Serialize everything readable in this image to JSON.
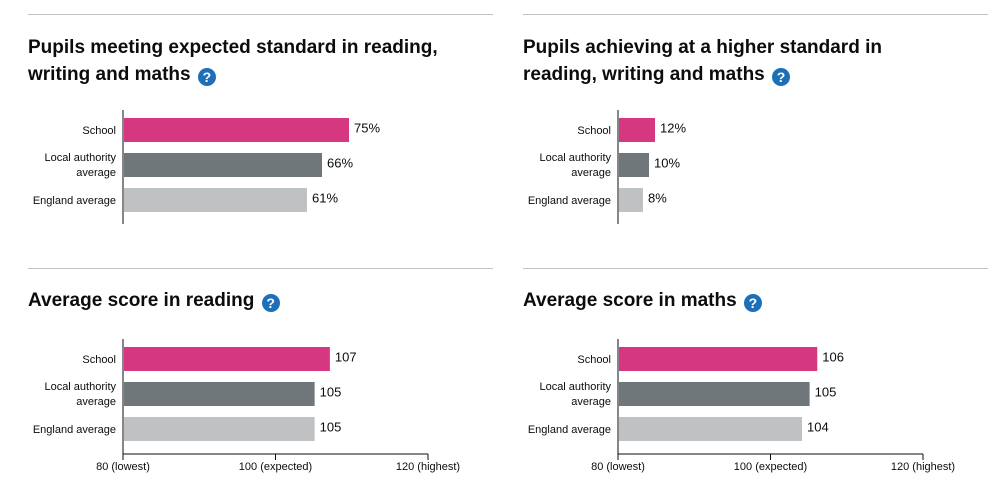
{
  "colors": {
    "school": "#d53880",
    "local": "#6f777b",
    "england": "#bfc1c3",
    "help": "#1d70b8",
    "rule": "#bfc1c3"
  },
  "help_glyph": "?",
  "panels": [
    {
      "title": "Pupils meeting expected standard in reading, writing and maths"
    },
    {
      "title": "Pupils achieving at a higher standard in reading, writing and maths"
    },
    {
      "title": "Average score in reading"
    },
    {
      "title": "Average score in maths"
    }
  ],
  "chart_data": [
    {
      "type": "bar",
      "orientation": "horizontal",
      "title": "Pupils meeting expected standard in reading, writing and maths",
      "categories": [
        [
          "School"
        ],
        [
          "Local authority",
          "average"
        ],
        [
          "England average"
        ]
      ],
      "values": [
        75,
        66,
        61
      ],
      "labels": [
        "75%",
        "66%",
        "61%"
      ],
      "xlim": [
        0,
        100
      ],
      "show_axis": false
    },
    {
      "type": "bar",
      "orientation": "horizontal",
      "title": "Pupils achieving at a higher standard in reading, writing and maths",
      "categories": [
        [
          "School"
        ],
        [
          "Local authority",
          "average"
        ],
        [
          "England average"
        ]
      ],
      "values": [
        12,
        10,
        8
      ],
      "labels": [
        "12%",
        "10%",
        "8%"
      ],
      "xlim": [
        0,
        100
      ],
      "show_axis": false
    },
    {
      "type": "bar",
      "orientation": "horizontal",
      "title": "Average score in reading",
      "categories": [
        [
          "School"
        ],
        [
          "Local authority",
          "average"
        ],
        [
          "England average"
        ]
      ],
      "values": [
        107,
        105,
        105
      ],
      "labels": [
        "107",
        "105",
        "105"
      ],
      "xlim": [
        80,
        120
      ],
      "show_axis": true,
      "ticks": [
        {
          "value": 80,
          "label": "80 (lowest)"
        },
        {
          "value": 100,
          "label": "100 (expected)"
        },
        {
          "value": 120,
          "label": "120 (highest)"
        }
      ]
    },
    {
      "type": "bar",
      "orientation": "horizontal",
      "title": "Average score in maths",
      "categories": [
        [
          "School"
        ],
        [
          "Local authority",
          "average"
        ],
        [
          "England average"
        ]
      ],
      "values": [
        106,
        105,
        104
      ],
      "labels": [
        "106",
        "105",
        "104"
      ],
      "xlim": [
        80,
        120
      ],
      "show_axis": true,
      "ticks": [
        {
          "value": 80,
          "label": "80 (lowest)"
        },
        {
          "value": 100,
          "label": "100 (expected)"
        },
        {
          "value": 120,
          "label": "120 (highest)"
        }
      ]
    }
  ]
}
